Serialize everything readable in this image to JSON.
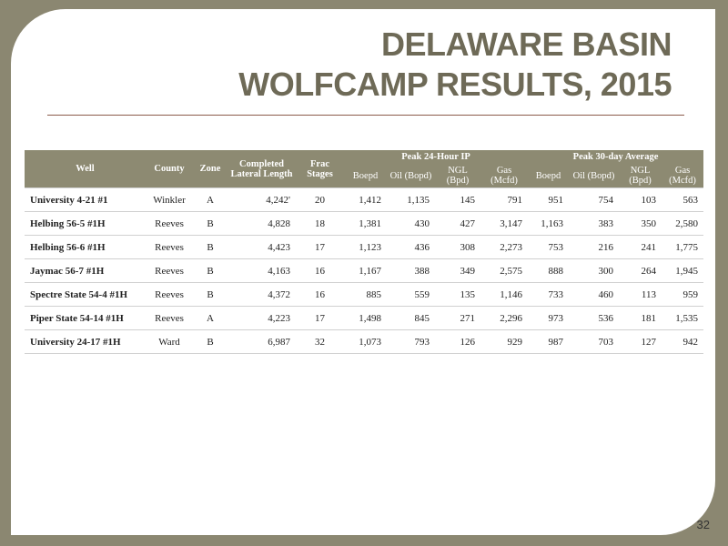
{
  "title": [
    "DELAWARE BASIN",
    "WOLFCAMP RESULTS, 2015"
  ],
  "table": {
    "header": {
      "fixed": [
        "Well",
        "County",
        "Zone",
        "Completed Lateral Length",
        "Frac Stages"
      ],
      "groups": [
        "Peak 24-Hour IP",
        "Peak 30-day Average"
      ],
      "sub": [
        "Boepd",
        "Oil (Bopd)",
        "NGL (Bpd)",
        "Gas (Mcfd)",
        "Boepd",
        "Oil (Bopd)",
        "NGL (Bpd)",
        "Gas (Mcfd)"
      ]
    },
    "rows": [
      [
        "University 4-21 #1",
        "Winkler",
        "A",
        "4,242'",
        "20",
        "1,412",
        "1,135",
        "145",
        "791",
        "951",
        "754",
        "103",
        "563"
      ],
      [
        "Helbing 56-5 #1H",
        "Reeves",
        "B",
        "4,828",
        "18",
        "1,381",
        "430",
        "427",
        "3,147",
        "1,163",
        "383",
        "350",
        "2,580"
      ],
      [
        "Helbing 56-6 #1H",
        "Reeves",
        "B",
        "4,423",
        "17",
        "1,123",
        "436",
        "308",
        "2,273",
        "753",
        "216",
        "241",
        "1,775"
      ],
      [
        "Jaymac 56-7 #1H",
        "Reeves",
        "B",
        "4,163",
        "16",
        "1,167",
        "388",
        "349",
        "2,575",
        "888",
        "300",
        "264",
        "1,945"
      ],
      [
        "Spectre State 54-4 #1H",
        "Reeves",
        "B",
        "4,372",
        "16",
        "885",
        "559",
        "135",
        "1,146",
        "733",
        "460",
        "113",
        "959"
      ],
      [
        "Piper State 54-14 #1H",
        "Reeves",
        "A",
        "4,223",
        "17",
        "1,498",
        "845",
        "271",
        "2,296",
        "973",
        "536",
        "181",
        "1,535"
      ],
      [
        "University 24-17 #1H",
        "Ward",
        "B",
        "6,987",
        "32",
        "1,073",
        "793",
        "126",
        "929",
        "987",
        "703",
        "127",
        "942"
      ]
    ]
  },
  "page_number": "32"
}
